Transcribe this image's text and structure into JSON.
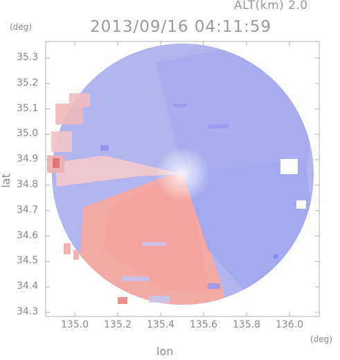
{
  "header": {
    "altitude_label": "ALT(km) 2.0",
    "timestamp": "2013/09/16 04:11:59"
  },
  "axes": {
    "y_unit": "(deg)",
    "x_unit": "(deg)",
    "y_title": "lat",
    "x_title": "lon",
    "y_ticks": [
      "35.3",
      "35.2",
      "35.1",
      "35.0",
      "34.9",
      "34.8",
      "34.7",
      "34.6",
      "34.5",
      "34.4",
      "34.3"
    ],
    "x_ticks": [
      "135.0",
      "135.2",
      "135.4",
      "135.6",
      "135.8",
      "136.0"
    ]
  },
  "map": {
    "type": "radar-doppler-velocity-ppi",
    "center": {
      "lon": 135.52,
      "lat": 34.82
    },
    "approaching_color": "#8e8ef2",
    "receding_color": "#f2a2a2",
    "frame_color": "#b4b4b4"
  }
}
